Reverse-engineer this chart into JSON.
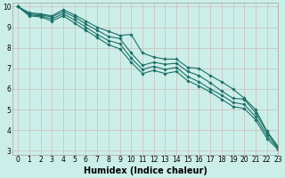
{
  "xlabel": "Humidex (Indice chaleur)",
  "bg_color": "#cceee8",
  "grid_color": "#ccbbbb",
  "line_color": "#1a7068",
  "xlim": [
    -0.5,
    23
  ],
  "ylim": [
    2.8,
    10.2
  ],
  "xticks": [
    0,
    1,
    2,
    3,
    4,
    5,
    6,
    7,
    8,
    9,
    10,
    11,
    12,
    13,
    14,
    15,
    16,
    17,
    18,
    19,
    20,
    21,
    22,
    23
  ],
  "yticks": [
    3,
    4,
    5,
    6,
    7,
    8,
    9,
    10
  ],
  "lines": [
    {
      "x": [
        0,
        1,
        2,
        3,
        4,
        5,
        6,
        7,
        8,
        9,
        10,
        11,
        12,
        13,
        14,
        15,
        16,
        17,
        18,
        19,
        20,
        21,
        22,
        23
      ],
      "y": [
        10.0,
        9.7,
        9.65,
        9.55,
        9.85,
        9.6,
        9.3,
        9.0,
        8.8,
        8.6,
        8.65,
        7.75,
        7.55,
        7.45,
        7.45,
        7.05,
        7.0,
        6.65,
        6.35,
        6.0,
        5.55,
        5.0,
        3.95,
        3.2
      ]
    },
    {
      "x": [
        0,
        1,
        2,
        3,
        4,
        5,
        6,
        7,
        8,
        9,
        10,
        11,
        12,
        13,
        14,
        15,
        16,
        17,
        18,
        19,
        20,
        21,
        22,
        23
      ],
      "y": [
        10.0,
        9.65,
        9.6,
        9.5,
        9.75,
        9.5,
        9.15,
        8.85,
        8.55,
        8.45,
        7.75,
        7.15,
        7.3,
        7.2,
        7.25,
        6.85,
        6.65,
        6.3,
        5.9,
        5.55,
        5.5,
        4.85,
        3.9,
        3.15
      ]
    },
    {
      "x": [
        0,
        1,
        2,
        3,
        4,
        5,
        6,
        7,
        8,
        9,
        10,
        11,
        12,
        13,
        14,
        15,
        16,
        17,
        18,
        19,
        20,
        21,
        22,
        23
      ],
      "y": [
        10.0,
        9.6,
        9.55,
        9.4,
        9.65,
        9.35,
        9.0,
        8.65,
        8.35,
        8.2,
        7.5,
        6.95,
        7.1,
        6.95,
        7.05,
        6.6,
        6.35,
        6.0,
        5.7,
        5.35,
        5.25,
        4.65,
        3.75,
        3.1
      ]
    },
    {
      "x": [
        0,
        1,
        2,
        3,
        4,
        5,
        6,
        7,
        8,
        9,
        10,
        11,
        12,
        13,
        14,
        15,
        16,
        17,
        18,
        19,
        20,
        21,
        22,
        23
      ],
      "y": [
        10.0,
        9.55,
        9.5,
        9.3,
        9.55,
        9.2,
        8.85,
        8.5,
        8.15,
        7.95,
        7.3,
        6.75,
        6.9,
        6.75,
        6.85,
        6.4,
        6.15,
        5.85,
        5.5,
        5.15,
        5.05,
        4.5,
        3.6,
        3.05
      ]
    }
  ],
  "marker": "D",
  "marker_size": 1.8,
  "line_width": 0.8,
  "xlabel_fontsize": 7,
  "tick_fontsize": 5.5
}
